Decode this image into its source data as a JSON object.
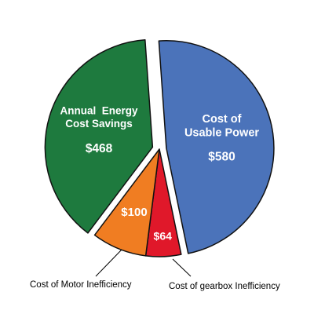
{
  "chart_data": {
    "type": "pie",
    "title": "",
    "slices": [
      {
        "label_lines": [
          "Cost of",
          "Usable Power"
        ],
        "value": 580,
        "value_label": "$580",
        "color": "#4b73ba",
        "exploded": true
      },
      {
        "label_lines": [],
        "value": 64,
        "value_label": "$64",
        "color": "#e0182a",
        "exploded": false
      },
      {
        "label_lines": [],
        "value": 100,
        "value_label": "$100",
        "color": "#f07d22",
        "exploded": false
      },
      {
        "label_lines": [
          "Annual  Energy",
          "Cost Savings"
        ],
        "value": 468,
        "value_label": "$468",
        "color": "#1e7a3e",
        "exploded": true
      }
    ],
    "callouts": [
      {
        "slice_index": 2,
        "text": "Cost of Motor Inefficiency"
      },
      {
        "slice_index": 1,
        "text": "Cost of gearbox Inefficiency"
      }
    ]
  }
}
